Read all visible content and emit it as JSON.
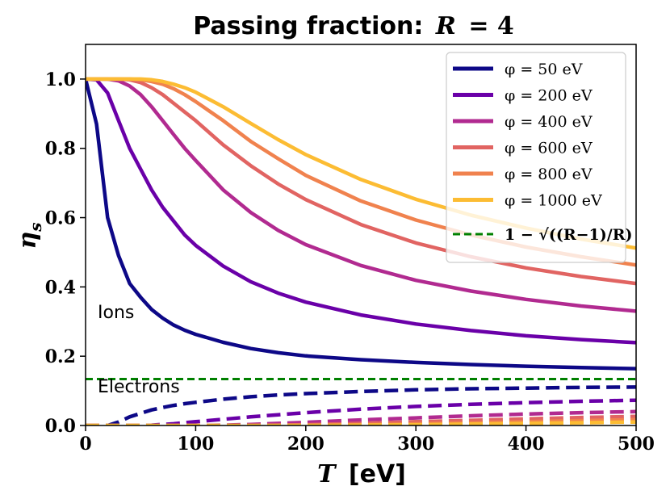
{
  "chart_data": {
    "type": "line",
    "title_prefix": "Passing fraction:",
    "title_var": "R",
    "title_eq": "= 4",
    "xlabel_var": "T",
    "xlabel_unit": "[eV]",
    "ylabel_var": "η",
    "ylabel_sub": "s",
    "xlim": [
      0,
      500
    ],
    "ylim": [
      0,
      1.1
    ],
    "xticks": [
      0,
      100,
      200,
      300,
      400,
      500
    ],
    "yticks": [
      0.0,
      0.2,
      0.4,
      0.6,
      0.8,
      1.0
    ],
    "grid": false,
    "legend_position": "top-right",
    "R": 4,
    "reference_line": {
      "name": "1 − √((R−1)/R)",
      "value": 0.134,
      "color": "#008000",
      "style": "dashed"
    },
    "x": [
      0,
      10,
      20,
      30,
      40,
      50,
      60,
      70,
      80,
      90,
      100,
      125,
      150,
      175,
      200,
      250,
      300,
      350,
      400,
      450,
      500
    ],
    "series": [
      {
        "name": "φ = 50 eV",
        "phi": 50,
        "color": "#0d0887",
        "ions": [
          1.0,
          0.87,
          0.6,
          0.49,
          0.41,
          0.37,
          0.335,
          0.31,
          0.29,
          0.275,
          0.263,
          0.24,
          0.222,
          0.21,
          0.201,
          0.19,
          0.182,
          0.176,
          0.171,
          0.167,
          0.164
        ],
        "electrons": [
          0.0,
          0.0,
          0.0,
          0.01,
          0.025,
          0.035,
          0.045,
          0.052,
          0.058,
          0.063,
          0.067,
          0.076,
          0.083,
          0.088,
          0.092,
          0.098,
          0.103,
          0.106,
          0.108,
          0.11,
          0.111
        ]
      },
      {
        "name": "φ = 200 eV",
        "phi": 200,
        "color": "#6a00a8",
        "ions": [
          1.0,
          0.998,
          0.96,
          0.88,
          0.8,
          0.74,
          0.68,
          0.63,
          0.59,
          0.55,
          0.52,
          0.46,
          0.415,
          0.382,
          0.356,
          0.319,
          0.293,
          0.274,
          0.259,
          0.248,
          0.239
        ],
        "electrons": [
          0.0,
          0.0,
          0.0,
          0.0,
          0.0,
          0.0,
          0.001,
          0.003,
          0.005,
          0.008,
          0.011,
          0.018,
          0.025,
          0.031,
          0.037,
          0.047,
          0.055,
          0.061,
          0.066,
          0.07,
          0.073
        ]
      },
      {
        "name": "φ = 400 eV",
        "phi": 400,
        "color": "#b12a90",
        "ions": [
          1.0,
          1.0,
          1.0,
          0.995,
          0.98,
          0.955,
          0.92,
          0.88,
          0.84,
          0.8,
          0.765,
          0.68,
          0.615,
          0.563,
          0.522,
          0.462,
          0.419,
          0.388,
          0.364,
          0.345,
          0.33
        ],
        "electrons": [
          0.0,
          0.0,
          0.0,
          0.0,
          0.0,
          0.0,
          0.0,
          0.0,
          0.0,
          0.0,
          0.0,
          0.001,
          0.003,
          0.006,
          0.009,
          0.016,
          0.022,
          0.028,
          0.033,
          0.037,
          0.04
        ]
      },
      {
        "name": "φ = 600 eV",
        "phi": 600,
        "color": "#e16462",
        "ions": [
          1.0,
          1.0,
          1.0,
          1.0,
          0.998,
          0.99,
          0.975,
          0.955,
          0.93,
          0.905,
          0.88,
          0.81,
          0.75,
          0.697,
          0.652,
          0.58,
          0.527,
          0.487,
          0.455,
          0.43,
          0.41
        ],
        "electrons": [
          0.0,
          0.0,
          0.0,
          0.0,
          0.0,
          0.0,
          0.0,
          0.0,
          0.0,
          0.0,
          0.0,
          0.0,
          0.0,
          0.001,
          0.002,
          0.006,
          0.011,
          0.015,
          0.019,
          0.023,
          0.026
        ]
      },
      {
        "name": "φ = 800 eV",
        "phi": 800,
        "color": "#fca636",
        "ions": [
          1.0,
          1.0,
          1.0,
          1.0,
          1.0,
          0.998,
          0.993,
          0.985,
          0.972,
          0.955,
          0.935,
          0.88,
          0.82,
          0.77,
          0.722,
          0.648,
          0.593,
          0.55,
          0.515,
          0.487,
          0.463
        ],
        "electrons": [
          0.0,
          0.0,
          0.0,
          0.0,
          0.0,
          0.0,
          0.0,
          0.0,
          0.0,
          0.0,
          0.0,
          0.0,
          0.0,
          0.0,
          0.0,
          0.002,
          0.005,
          0.008,
          0.011,
          0.014,
          0.017
        ],
        "display_color": "#f0824e"
      },
      {
        "name": "φ = 1000 eV",
        "phi": 1000,
        "color": "#fcbc33",
        "ions": [
          1.0,
          1.0,
          1.0,
          1.0,
          1.0,
          1.0,
          0.998,
          0.993,
          0.985,
          0.975,
          0.962,
          0.92,
          0.872,
          0.825,
          0.782,
          0.71,
          0.653,
          0.607,
          0.57,
          0.538,
          0.512
        ],
        "electrons": [
          0.0,
          0.0,
          0.0,
          0.0,
          0.0,
          0.0,
          0.0,
          0.0,
          0.0,
          0.0,
          0.0,
          0.0,
          0.0,
          0.0,
          0.0,
          0.001,
          0.002,
          0.004,
          0.006,
          0.008,
          0.01
        ]
      }
    ],
    "annotations": [
      {
        "text": "Ions",
        "x": 11,
        "y": 0.31
      },
      {
        "text": "Electrons",
        "x": 11,
        "y": 0.095
      }
    ]
  }
}
